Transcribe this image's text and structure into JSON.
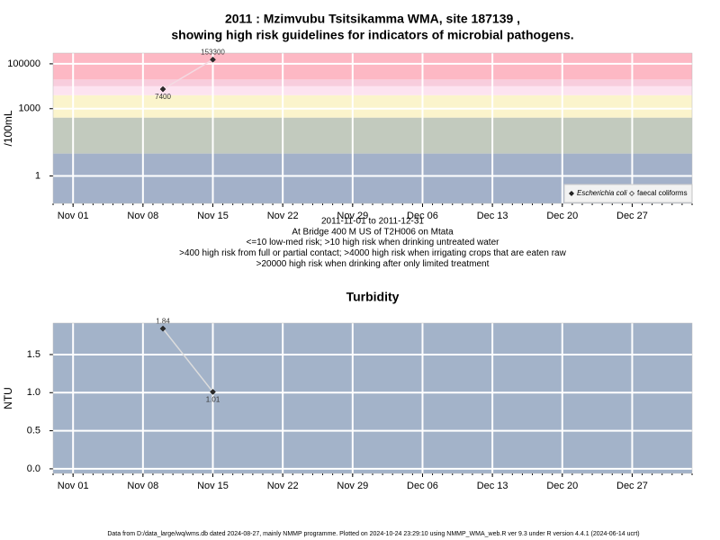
{
  "chart_data": [
    {
      "type": "line",
      "title": [
        "2011 : Mzimvubu Tsitsikamma WMA, site 187139 ,",
        "showing high risk guidelines for indicators of microbial pathogens."
      ],
      "ylabel": "/100mL",
      "notes": [
        "2011-11-01 to 2011-12-31",
        "At Bridge 400 M US of T2H006 on Mtata",
        "<=10 low-med risk; >10 high risk when drinking untreated water",
        ">400 high risk from full or partial contact; >4000 high risk when irrigating crops that are eaten raw",
        ">20000 high risk when drinking after only limited treatment"
      ],
      "x": [
        "2011-11-10",
        "2011-11-15"
      ],
      "series": [
        {
          "name": "Escherichia coli",
          "color": "#2b2b2b",
          "values": [
            7400,
            153300
          ],
          "value_labels": [
            "7400",
            "153300"
          ]
        },
        {
          "name": "faecal coliforms",
          "color": "#ffffff",
          "values": [
            null,
            null
          ]
        }
      ],
      "line_color": "#f3dbe3",
      "ylog": true,
      "ylim": [
        0.06,
        300000
      ],
      "yticks": [
        1,
        1000,
        100000
      ],
      "xlim": [
        "2011-10-30",
        "2012-01-02"
      ],
      "xticks": [
        {
          "value": "2011-11-01",
          "label": "Nov 01"
        },
        {
          "value": "2011-11-08",
          "label": "Nov 08"
        },
        {
          "value": "2011-11-15",
          "label": "Nov 15"
        },
        {
          "value": "2011-11-22",
          "label": "Nov 22"
        },
        {
          "value": "2011-11-29",
          "label": "Nov 29"
        },
        {
          "value": "2011-12-06",
          "label": "Dec 06"
        },
        {
          "value": "2011-12-13",
          "label": "Dec 13"
        },
        {
          "value": "2011-12-20",
          "label": "Dec 20"
        },
        {
          "value": "2011-12-27",
          "label": "Dec 27"
        }
      ],
      "bands": [
        {
          "from": null,
          "to": 10,
          "color": "#a3b1c9"
        },
        {
          "from": 10,
          "to": 400,
          "color": "#c2cabe"
        },
        {
          "from": 400,
          "to": 4000,
          "color": "#fbf4cc"
        },
        {
          "from": 4000,
          "to": 10000,
          "color": "#fde3f0"
        },
        {
          "from": 10000,
          "to": 20000,
          "color": "#f8cddd"
        },
        {
          "from": 20000,
          "to": null,
          "color": "#fdb8c4"
        }
      ],
      "grid": true,
      "legend": "lower right"
    },
    {
      "type": "line",
      "title": [
        "Turbidity"
      ],
      "ylabel": "NTU",
      "x": [
        "2011-11-10",
        "2011-11-15"
      ],
      "values": [
        1.84,
        1.01
      ],
      "color": "#2b2b2b",
      "line_color": "#dddddd",
      "background": "#a3b3c9",
      "ylim": [
        -0.06,
        1.913
      ],
      "yticks": [
        {
          "value": 0,
          "label": "0.0"
        },
        {
          "value": 0.5,
          "label": "0.5"
        },
        {
          "value": 1,
          "label": "1.0"
        },
        {
          "value": 1.5,
          "label": "1.5"
        }
      ],
      "xlim": [
        "2011-10-30",
        "2012-01-02"
      ],
      "xticks": [
        {
          "value": "2011-11-01",
          "label": "Nov 01"
        },
        {
          "value": "2011-11-08",
          "label": "Nov 08"
        },
        {
          "value": "2011-11-15",
          "label": "Nov 15"
        },
        {
          "value": "2011-11-22",
          "label": "Nov 22"
        },
        {
          "value": "2011-11-29",
          "label": "Nov 29"
        },
        {
          "value": "2011-12-06",
          "label": "Dec 06"
        },
        {
          "value": "2011-12-13",
          "label": "Dec 13"
        },
        {
          "value": "2011-12-20",
          "label": "Dec 20"
        },
        {
          "value": "2011-12-27",
          "label": "Dec 27"
        }
      ],
      "grid": true
    }
  ],
  "footer": "Data from D:/data_large/wq/wms.db dated 2024-08-27, mainly NMMP programme. Plotted on 2024-10-24 23:29:10 using NMMP_WMA_web.R ver 9.3 under R version 4.4.1 (2024-06-14 ucrt)"
}
